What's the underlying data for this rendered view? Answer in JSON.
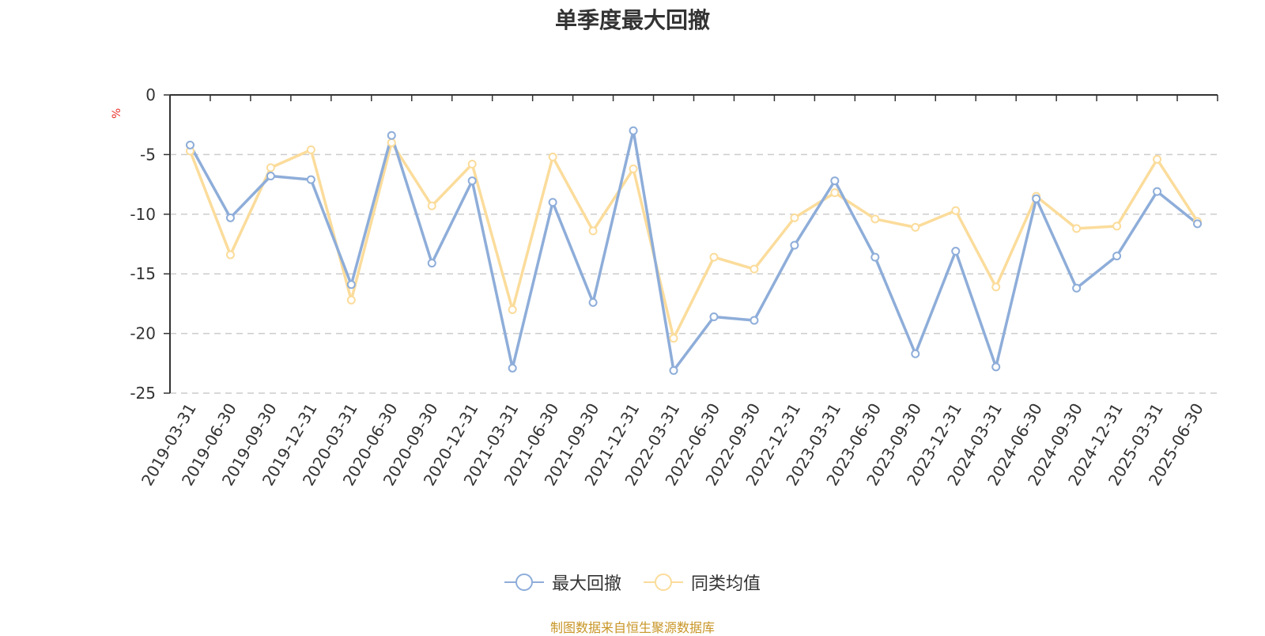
{
  "chart_data": {
    "type": "line",
    "title": "单季度最大回撤",
    "ylabel": "%",
    "xlabel": "",
    "ylim": [
      -25,
      0
    ],
    "yticks": [
      0,
      -5,
      -10,
      -15,
      -20,
      -25
    ],
    "grid": true,
    "legend_position": "bottom",
    "categories": [
      "2019-03-31",
      "2019-06-30",
      "2019-09-30",
      "2019-12-31",
      "2020-03-31",
      "2020-06-30",
      "2020-09-30",
      "2020-12-31",
      "2021-03-31",
      "2021-06-30",
      "2021-09-30",
      "2021-12-31",
      "2022-03-31",
      "2022-06-30",
      "2022-09-30",
      "2022-12-31",
      "2023-03-31",
      "2023-06-30",
      "2023-09-30",
      "2023-12-31",
      "2024-03-31",
      "2024-06-30",
      "2024-09-30",
      "2024-12-31",
      "2025-03-31",
      "2025-06-30"
    ],
    "series": [
      {
        "name": "最大回撤",
        "color": "#8eadd9",
        "values": [
          -4.2,
          -10.3,
          -6.8,
          -7.1,
          -15.9,
          -3.4,
          -14.1,
          -7.2,
          -22.9,
          -9.0,
          -17.4,
          -3.0,
          -23.1,
          -18.6,
          -18.9,
          -12.6,
          -7.2,
          -13.6,
          -21.7,
          -13.1,
          -22.8,
          -8.7,
          -16.2,
          -13.5,
          -8.1,
          -10.8
        ]
      },
      {
        "name": "同类均值",
        "color": "#fbdc9b",
        "values": [
          -4.7,
          -13.4,
          -6.1,
          -4.6,
          -17.2,
          -4.0,
          -9.3,
          -5.8,
          -18.0,
          -5.2,
          -11.4,
          -6.2,
          -20.4,
          -13.6,
          -14.6,
          -10.3,
          -8.2,
          -10.4,
          -11.1,
          -9.7,
          -16.1,
          -8.5,
          -11.2,
          -11.0,
          -5.4,
          -10.6
        ]
      }
    ]
  },
  "footer": {
    "source": "制图数据来自恒生聚源数据库"
  }
}
